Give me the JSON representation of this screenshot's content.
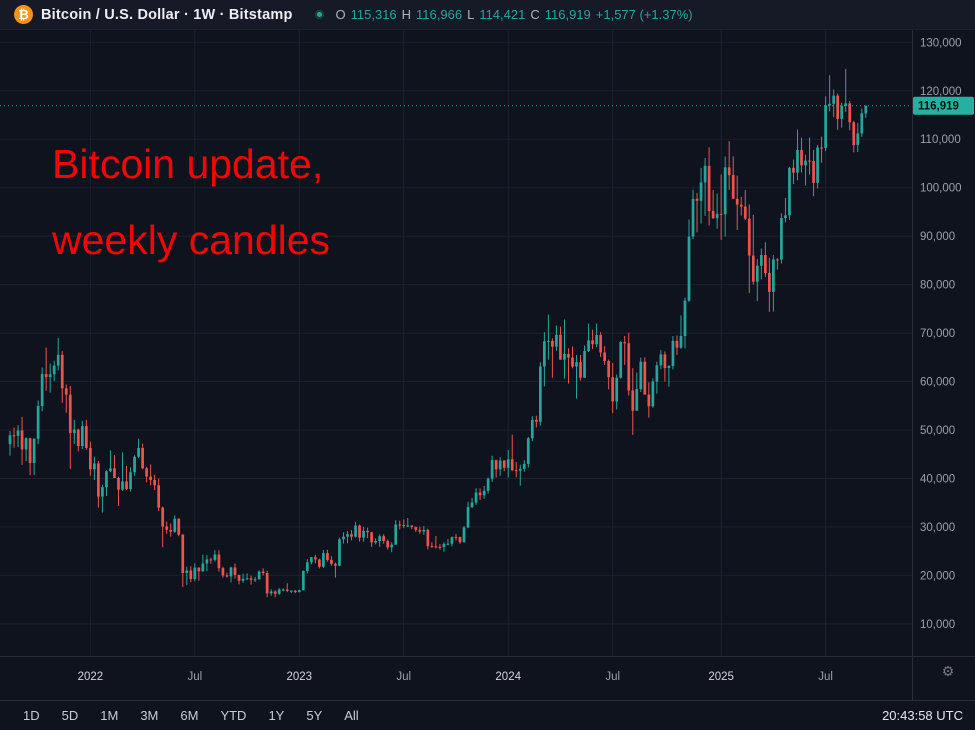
{
  "header": {
    "symbol_title": "Bitcoin / U.S. Dollar · 1W · Bitstamp",
    "ohlc": {
      "o_label": "O",
      "o": "115,316",
      "h_label": "H",
      "h": "116,966",
      "l_label": "L",
      "l": "114,421",
      "c_label": "C",
      "c": "116,919",
      "change": "+1,577 (+1.37%)"
    }
  },
  "annotation": {
    "line1": "Bitcoin update,",
    "line2": "weekly candles"
  },
  "toolbar": {
    "ranges": [
      "1D",
      "5D",
      "1M",
      "3M",
      "6M",
      "YTD",
      "1Y",
      "5Y",
      "All"
    ],
    "clock": "20:43:58 UTC"
  },
  "chart_data": {
    "type": "candlestick",
    "symbol": "Bitcoin / U.S. Dollar",
    "timeframe": "1W",
    "exchange": "Bitstamp",
    "current_price": 116919,
    "current_price_label": "116,919",
    "ylim": [
      4200,
      131300
    ],
    "right_padding": 11,
    "grid": true,
    "price_ticks": [
      {
        "value": 130000,
        "label": "130,000"
      },
      {
        "value": 120000,
        "label": "120,000"
      },
      {
        "value": 110000,
        "label": "110,000"
      },
      {
        "value": 100000,
        "label": "100,000"
      },
      {
        "value": 90000,
        "label": "90,000"
      },
      {
        "value": 80000,
        "label": "80,000"
      },
      {
        "value": 70000,
        "label": "70,000"
      },
      {
        "value": 60000,
        "label": "60,000"
      },
      {
        "value": 50000,
        "label": "50,000"
      },
      {
        "value": 40000,
        "label": "40,000"
      },
      {
        "value": 30000,
        "label": "30,000"
      },
      {
        "value": 20000,
        "label": "20,000"
      },
      {
        "value": 10000,
        "label": "10,000"
      }
    ],
    "time_ticks": [
      {
        "index": 20,
        "label": "2022"
      },
      {
        "index": 46,
        "label": "Jul"
      },
      {
        "index": 72,
        "label": "2023"
      },
      {
        "index": 98,
        "label": "Jul"
      },
      {
        "index": 124,
        "label": "2024"
      },
      {
        "index": 150,
        "label": "Jul"
      },
      {
        "index": 177,
        "label": "2025"
      },
      {
        "index": 203,
        "label": "Jul"
      }
    ],
    "colors": {
      "up": "#26a69a",
      "down": "#ef5350",
      "grid": "#1b2130",
      "axis_text": "#9aa0ab",
      "axis_text_bright": "#d3d6de",
      "border": "#2a2e39",
      "price_tag_bg": "#26b0a2",
      "price_tag_text": "#06130f",
      "current_line": "#26a69a",
      "annotation_red": "#f40505",
      "accent_orange": "#f7931a"
    },
    "candles": [
      [
        47100,
        49800,
        44700,
        48900
      ],
      [
        48900,
        50500,
        46350,
        48800
      ],
      [
        48800,
        51000,
        46500,
        49900
      ],
      [
        49900,
        52700,
        42800,
        46000
      ],
      [
        46000,
        48500,
        43600,
        48300
      ],
      [
        48300,
        48400,
        40700,
        43200
      ],
      [
        43200,
        48300,
        40750,
        48200
      ],
      [
        48200,
        56100,
        47100,
        54950
      ],
      [
        54950,
        62900,
        53900,
        61550
      ],
      [
        61550,
        67000,
        58100,
        60900
      ],
      [
        60900,
        63700,
        57700,
        61500
      ],
      [
        61500,
        64300,
        60100,
        63300
      ],
      [
        63300,
        69000,
        62300,
        65500
      ],
      [
        65500,
        66300,
        55600,
        58600
      ],
      [
        58600,
        59400,
        53600,
        57300
      ],
      [
        57300,
        59100,
        42000,
        49400
      ],
      [
        49400,
        52100,
        47150,
        50100
      ],
      [
        50100,
        50250,
        45600,
        46700
      ],
      [
        46700,
        51900,
        46100,
        50800
      ],
      [
        50800,
        52100,
        45900,
        46300
      ],
      [
        46300,
        47600,
        40600,
        41900
      ],
      [
        41900,
        44500,
        39700,
        43100
      ],
      [
        43100,
        43600,
        34000,
        36250
      ],
      [
        36250,
        38700,
        32950,
        38200
      ],
      [
        38200,
        41700,
        36400,
        41500
      ],
      [
        41500,
        45800,
        41300,
        42100
      ],
      [
        42100,
        44800,
        40100,
        40100
      ],
      [
        40100,
        40350,
        34350,
        37700
      ],
      [
        37700,
        45400,
        37450,
        39400
      ],
      [
        39400,
        42600,
        37600,
        37800
      ],
      [
        37800,
        42300,
        37300,
        41300
      ],
      [
        41300,
        44800,
        40600,
        44500
      ],
      [
        44500,
        48200,
        44200,
        46300
      ],
      [
        46300,
        47200,
        41900,
        42100
      ],
      [
        42100,
        42400,
        39200,
        40400
      ],
      [
        40400,
        42900,
        38600,
        39700
      ],
      [
        39700,
        40800,
        37600,
        38600
      ],
      [
        38600,
        40000,
        33300,
        34000
      ],
      [
        34000,
        34200,
        25800,
        30100
      ],
      [
        30100,
        31100,
        28600,
        29400
      ],
      [
        29400,
        30700,
        28000,
        29000
      ],
      [
        29000,
        32400,
        28800,
        31700
      ],
      [
        31700,
        31800,
        28100,
        28400
      ],
      [
        28400,
        28500,
        17600,
        20500
      ],
      [
        20500,
        21800,
        18000,
        21000
      ],
      [
        21000,
        21900,
        18600,
        19250
      ],
      [
        19250,
        22500,
        18800,
        21600
      ],
      [
        21600,
        21700,
        18900,
        20850
      ],
      [
        20850,
        24300,
        20750,
        22450
      ],
      [
        22450,
        24200,
        20900,
        23300
      ],
      [
        23300,
        23650,
        22400,
        23200
      ],
      [
        23200,
        25200,
        22850,
        24300
      ],
      [
        24300,
        25200,
        20800,
        21500
      ],
      [
        21500,
        21800,
        19550,
        20000
      ],
      [
        20000,
        20550,
        19550,
        19800
      ],
      [
        19800,
        21800,
        18550,
        21650
      ],
      [
        21650,
        22450,
        19350,
        20100
      ],
      [
        20100,
        20150,
        18150,
        18900
      ],
      [
        18900,
        20350,
        18500,
        19300
      ],
      [
        19300,
        20450,
        19050,
        19400
      ],
      [
        19400,
        19950,
        18100,
        19100
      ],
      [
        19100,
        19700,
        18650,
        19200
      ],
      [
        19200,
        21050,
        19150,
        20800
      ],
      [
        20800,
        21450,
        20000,
        20500
      ],
      [
        20500,
        21000,
        15500,
        16300
      ],
      [
        16300,
        17150,
        15800,
        16700
      ],
      [
        16700,
        16950,
        15500,
        16200
      ],
      [
        16200,
        17400,
        16000,
        17100
      ],
      [
        17100,
        17350,
        16700,
        17100
      ],
      [
        17100,
        18400,
        16550,
        16800
      ],
      [
        16800,
        16950,
        16350,
        16850
      ],
      [
        16850,
        17000,
        16350,
        16550
      ],
      [
        16550,
        17050,
        16500,
        16950
      ],
      [
        16950,
        21050,
        16900,
        20900
      ],
      [
        20900,
        23350,
        20400,
        22700
      ],
      [
        22700,
        23800,
        22300,
        23750
      ],
      [
        23750,
        24250,
        22500,
        23300
      ],
      [
        23300,
        23450,
        21450,
        21800
      ],
      [
        21800,
        25250,
        21550,
        24600
      ],
      [
        24600,
        25300,
        22850,
        23200
      ],
      [
        23200,
        23950,
        22000,
        22400
      ],
      [
        22400,
        22650,
        19550,
        22000
      ],
      [
        22000,
        27800,
        21900,
        27450
      ],
      [
        27450,
        28900,
        26600,
        28000
      ],
      [
        28000,
        29150,
        26650,
        28500
      ],
      [
        28500,
        29350,
        27250,
        28000
      ],
      [
        28000,
        31050,
        27800,
        30300
      ],
      [
        30300,
        30500,
        27000,
        27800
      ],
      [
        27800,
        30050,
        26950,
        29200
      ],
      [
        29200,
        29850,
        27700,
        28900
      ],
      [
        28900,
        28950,
        25850,
        26800
      ],
      [
        26800,
        27650,
        26400,
        27100
      ],
      [
        27100,
        28450,
        25900,
        28100
      ],
      [
        28100,
        28500,
        26550,
        27100
      ],
      [
        27100,
        27400,
        25350,
        25800
      ],
      [
        25800,
        26800,
        24800,
        26350
      ],
      [
        26350,
        31400,
        26300,
        30500
      ],
      [
        30500,
        31300,
        29500,
        30400
      ],
      [
        30400,
        31550,
        29750,
        30300
      ],
      [
        30300,
        31850,
        29950,
        30300
      ],
      [
        30300,
        30350,
        29550,
        30000
      ],
      [
        30000,
        30100,
        29000,
        29400
      ],
      [
        29400,
        30050,
        28600,
        29050
      ],
      [
        29050,
        30200,
        28350,
        29400
      ],
      [
        29400,
        29650,
        25350,
        26050
      ],
      [
        26050,
        26850,
        25700,
        26000
      ],
      [
        26000,
        28150,
        25550,
        25900
      ],
      [
        25900,
        26450,
        25350,
        25850
      ],
      [
        25850,
        26850,
        24900,
        26500
      ],
      [
        26500,
        27500,
        26200,
        26550
      ],
      [
        26550,
        28000,
        26000,
        27950
      ],
      [
        27950,
        28600,
        27200,
        27900
      ],
      [
        27900,
        28000,
        26550,
        26850
      ],
      [
        26850,
        30200,
        26800,
        29900
      ],
      [
        29900,
        35200,
        29750,
        34100
      ],
      [
        34100,
        36000,
        33900,
        35050
      ],
      [
        35050,
        38000,
        34550,
        37100
      ],
      [
        37100,
        37950,
        35550,
        36550
      ],
      [
        36550,
        38450,
        35800,
        37450
      ],
      [
        37450,
        40200,
        36900,
        39950
      ],
      [
        39950,
        44700,
        39300,
        43800
      ],
      [
        43800,
        43900,
        40200,
        41900
      ],
      [
        41900,
        44400,
        40550,
        43700
      ],
      [
        43700,
        43800,
        41500,
        42200
      ],
      [
        42200,
        45900,
        40200,
        43950
      ],
      [
        43950,
        49050,
        41500,
        41700
      ],
      [
        41700,
        43400,
        40250,
        41600
      ],
      [
        41600,
        42850,
        38500,
        42000
      ],
      [
        42000,
        43750,
        41400,
        43000
      ],
      [
        43000,
        48550,
        42250,
        48300
      ],
      [
        48300,
        52850,
        47700,
        52100
      ],
      [
        52100,
        52950,
        50550,
        51700
      ],
      [
        51700,
        64000,
        50900,
        63100
      ],
      [
        63100,
        70200,
        59000,
        68300
      ],
      [
        68300,
        73800,
        64500,
        68400
      ],
      [
        68400,
        68900,
        60800,
        67200
      ],
      [
        67200,
        71550,
        66350,
        69650
      ],
      [
        69650,
        71350,
        64550,
        64500
      ],
      [
        64500,
        72800,
        60600,
        65700
      ],
      [
        65700,
        66850,
        59600,
        64950
      ],
      [
        64950,
        67250,
        62750,
        63100
      ],
      [
        63100,
        65500,
        56500,
        64000
      ],
      [
        64000,
        65500,
        60200,
        60800
      ],
      [
        60800,
        67450,
        60750,
        66300
      ],
      [
        66300,
        71950,
        66100,
        68500
      ],
      [
        68500,
        70700,
        66700,
        67700
      ],
      [
        67700,
        71950,
        67100,
        69600
      ],
      [
        69600,
        70200,
        65050,
        66000
      ],
      [
        66000,
        67300,
        63400,
        64250
      ],
      [
        64250,
        64550,
        58400,
        60900
      ],
      [
        60900,
        63850,
        53500,
        55900
      ],
      [
        55900,
        61450,
        54250,
        60800
      ],
      [
        60800,
        68400,
        60600,
        68150
      ],
      [
        68150,
        69400,
        63450,
        67900
      ],
      [
        67900,
        70100,
        57100,
        58150
      ],
      [
        58150,
        62750,
        49000,
        54000
      ],
      [
        54000,
        61850,
        53950,
        58450
      ],
      [
        58450,
        64950,
        57850,
        64100
      ],
      [
        64100,
        65000,
        57750,
        57300
      ],
      [
        57300,
        59850,
        52550,
        54900
      ],
      [
        54900,
        60650,
        54600,
        60000
      ],
      [
        60000,
        64100,
        57500,
        63350
      ],
      [
        63350,
        66500,
        62550,
        65600
      ],
      [
        65600,
        66250,
        60000,
        62800
      ],
      [
        62800,
        63400,
        58950,
        63200
      ],
      [
        63200,
        69400,
        62500,
        68400
      ],
      [
        68400,
        69500,
        65500,
        67000
      ],
      [
        67000,
        73650,
        66750,
        69400
      ],
      [
        69400,
        77300,
        66850,
        76700
      ],
      [
        76700,
        93450,
        76450,
        89900
      ],
      [
        89900,
        99600,
        89400,
        97700
      ],
      [
        97700,
        98900,
        90800,
        97300
      ],
      [
        97300,
        104100,
        92600,
        101100
      ],
      [
        101100,
        106100,
        94200,
        104500
      ],
      [
        104500,
        108350,
        92200,
        95200
      ],
      [
        95200,
        99500,
        93550,
        93700
      ],
      [
        93700,
        98800,
        91550,
        94600
      ],
      [
        94600,
        102750,
        89250,
        94500
      ],
      [
        94500,
        106450,
        89950,
        104200
      ],
      [
        104200,
        109600,
        99550,
        102600
      ],
      [
        102600,
        106500,
        97750,
        97700
      ],
      [
        97700,
        102500,
        91250,
        96500
      ],
      [
        96500,
        98100,
        94250,
        96100
      ],
      [
        96100,
        99500,
        93350,
        93600
      ],
      [
        93600,
        96550,
        78250,
        86000
      ],
      [
        86000,
        94400,
        80000,
        80600
      ],
      [
        80600,
        85300,
        76600,
        83900
      ],
      [
        83900,
        87450,
        81100,
        86100
      ],
      [
        86100,
        88750,
        81600,
        82400
      ],
      [
        82400,
        85550,
        74400,
        78500
      ],
      [
        78500,
        86100,
        74450,
        85200
      ],
      [
        85200,
        85450,
        83100,
        85150
      ],
      [
        85150,
        94700,
        84350,
        93750
      ],
      [
        93750,
        97900,
        92850,
        94300
      ],
      [
        94300,
        104300,
        93350,
        104100
      ],
      [
        104100,
        105800,
        100750,
        103100
      ],
      [
        103100,
        111980,
        101550,
        107800
      ],
      [
        107800,
        110300,
        103150,
        104600
      ],
      [
        104600,
        106800,
        100450,
        105600
      ],
      [
        105600,
        110350,
        102700,
        105500
      ],
      [
        105500,
        107800,
        98250,
        101000
      ],
      [
        101000,
        108800,
        99850,
        108300
      ],
      [
        108300,
        110550,
        105150,
        108200
      ],
      [
        108200,
        118850,
        107550,
        117000
      ],
      [
        117000,
        123200,
        115750,
        117300
      ],
      [
        117300,
        120250,
        114550,
        119000
      ],
      [
        119000,
        119450,
        111950,
        114200
      ],
      [
        114200,
        117550,
        112400,
        116900
      ],
      [
        116900,
        124500,
        115650,
        117400
      ],
      [
        117400,
        117900,
        111850,
        113500
      ],
      [
        113500,
        113800,
        107300,
        108800
      ],
      [
        108800,
        113350,
        107350,
        111200
      ],
      [
        111200,
        116350,
        110500,
        115342
      ],
      [
        115316,
        116966,
        114421,
        116919
      ]
    ]
  }
}
